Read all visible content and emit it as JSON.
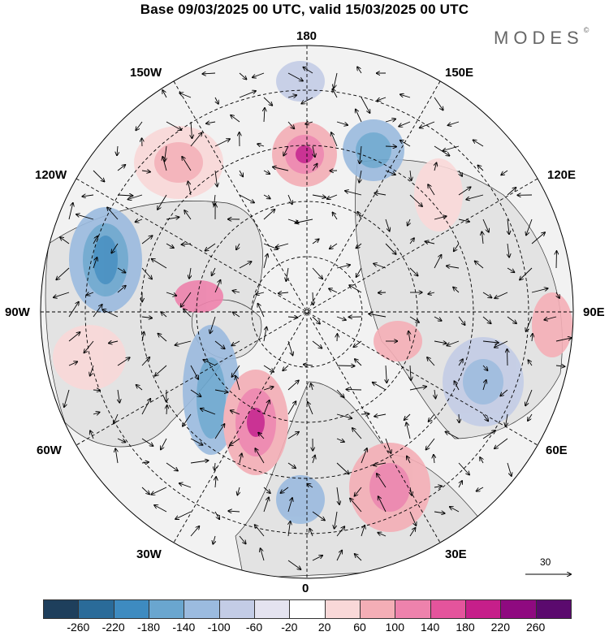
{
  "title": "Base 09/03/2025 00 UTC, valid 15/03/2025 00 UTC",
  "brand": "MODES",
  "brand_mark": "©",
  "longitude_labels": {
    "top": "180",
    "bottom": "0",
    "left": "90W",
    "right": "90E",
    "upper_left_1": "150W",
    "upper_left_2": "120W",
    "lower_left_1": "60W",
    "lower_left_2": "30W",
    "upper_right_1": "150E",
    "upper_right_2": "120E",
    "lower_right_1": "60E",
    "lower_right_2": "30E"
  },
  "reference_vector": "30",
  "colorbar": {
    "ticks": [
      "-260",
      "-220",
      "-180",
      "-140",
      "-100",
      "-60",
      "-20",
      "20",
      "60",
      "100",
      "140",
      "180",
      "220",
      "260"
    ],
    "colors": [
      "#1e3f5c",
      "#2a6b99",
      "#3e8bc0",
      "#6aa6cf",
      "#9bbbdf",
      "#c3cce6",
      "#e4e3f0",
      "#ffffff",
      "#f9d8d8",
      "#f4aeb6",
      "#ee82ac",
      "#e4549c",
      "#c61f8a",
      "#8f0a80",
      "#5b0a6e"
    ]
  },
  "colors": {
    "land": "#d9d9d9",
    "ocean": "#f2f2f2",
    "border": "#000000"
  }
}
